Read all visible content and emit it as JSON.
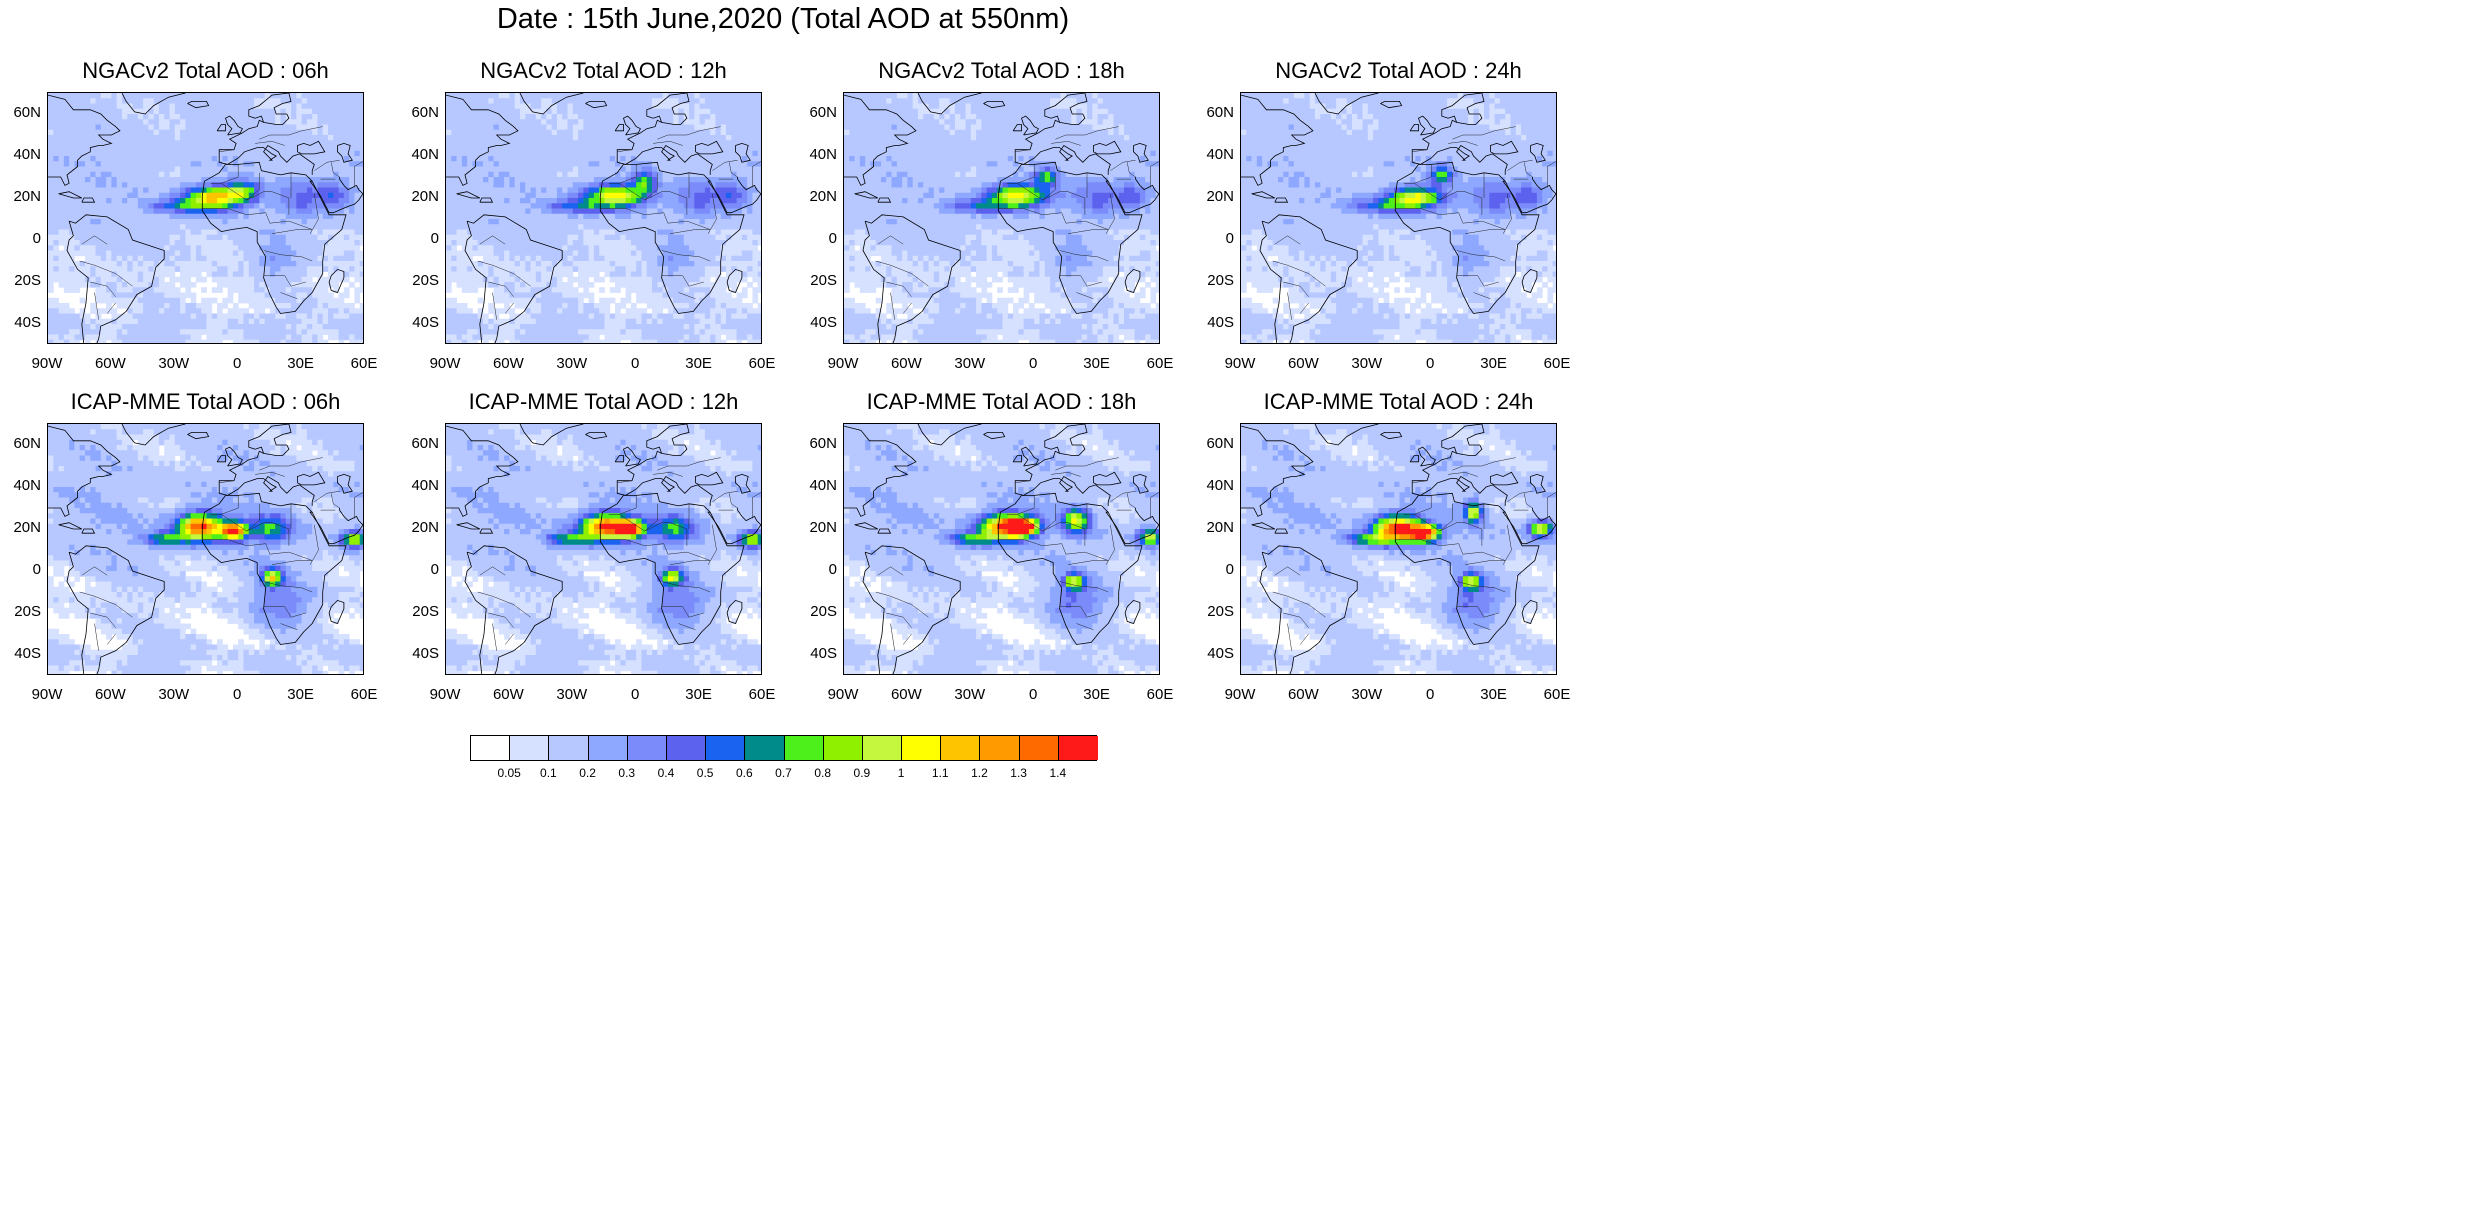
{
  "figure": {
    "title": "Date : 15th June,2020 (Total AOD at 550nm)"
  },
  "lat_ticks": [
    "60N",
    "40N",
    "20N",
    "0",
    "20S",
    "40S"
  ],
  "lon_ticks": [
    "90W",
    "60W",
    "30W",
    "0",
    "30E",
    "60E"
  ],
  "panels": [
    {
      "title": "NGACv2 Total AOD : 06h",
      "model": "NGACv2",
      "lead": "06h"
    },
    {
      "title": "NGACv2 Total AOD : 12h",
      "model": "NGACv2",
      "lead": "12h"
    },
    {
      "title": "NGACv2 Total AOD : 18h",
      "model": "NGACv2",
      "lead": "18h"
    },
    {
      "title": "NGACv2 Total AOD : 24h",
      "model": "NGACv2",
      "lead": "24h"
    },
    {
      "title": "ICAP-MME Total AOD : 06h",
      "model": "ICAP-MME",
      "lead": "06h"
    },
    {
      "title": "ICAP-MME Total AOD : 12h",
      "model": "ICAP-MME",
      "lead": "12h"
    },
    {
      "title": "ICAP-MME Total AOD : 18h",
      "model": "ICAP-MME",
      "lead": "18h"
    },
    {
      "title": "ICAP-MME Total AOD : 24h",
      "model": "ICAP-MME",
      "lead": "24h"
    }
  ],
  "colorbar": {
    "labels": [
      "0.05",
      "0.1",
      "0.2",
      "0.3",
      "0.4",
      "0.5",
      "0.6",
      "0.7",
      "0.8",
      "0.9",
      "1",
      "1.1",
      "1.2",
      "1.3",
      "1.4"
    ],
    "colors": [
      "#ffffff",
      "#d6e0ff",
      "#b6c8ff",
      "#8ea8ff",
      "#7b8cfa",
      "#5c62ee",
      "#1a62f0",
      "#008b8b",
      "#4ef01c",
      "#8ff000",
      "#c4f73e",
      "#ffff00",
      "#ffc400",
      "#ff9a00",
      "#ff6a00",
      "#ff1a1a"
    ]
  }
}
